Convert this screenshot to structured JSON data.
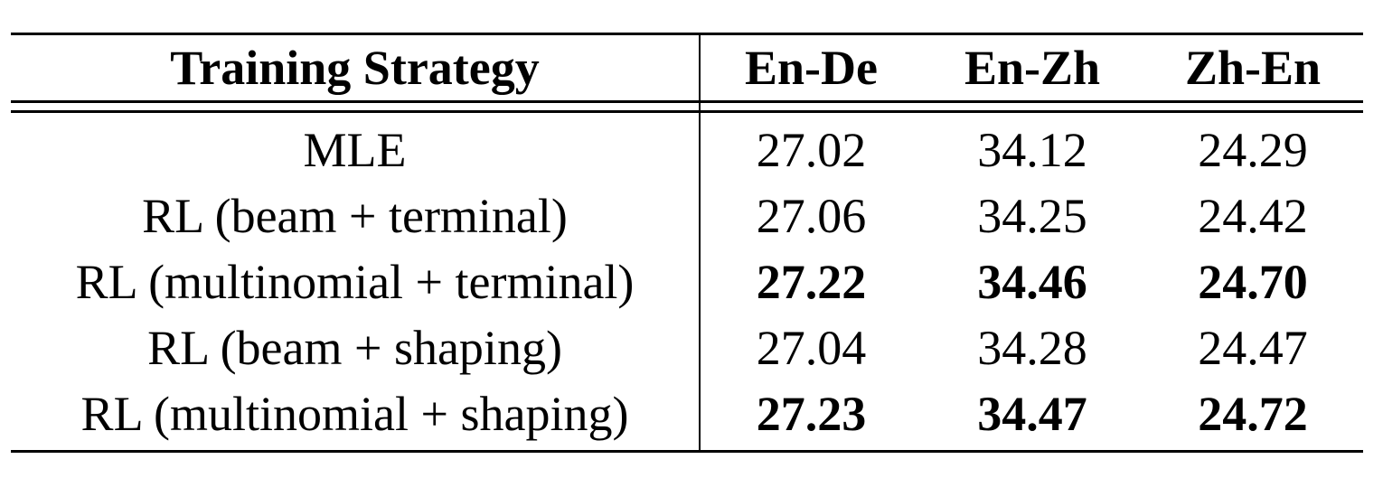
{
  "table": {
    "headers": [
      "Training Strategy",
      "En-De",
      "En-Zh",
      "Zh-En"
    ],
    "rows": [
      {
        "strategy": "MLE",
        "values": [
          "27.02",
          "34.12",
          "24.29"
        ],
        "bold": [
          false,
          false,
          false
        ]
      },
      {
        "strategy": "RL (beam + terminal)",
        "values": [
          "27.06",
          "34.25",
          "24.42"
        ],
        "bold": [
          false,
          false,
          false
        ]
      },
      {
        "strategy": "RL (multinomial + terminal)",
        "values": [
          "27.22",
          "34.46",
          "24.70"
        ],
        "bold": [
          true,
          true,
          true
        ]
      },
      {
        "strategy": "RL (beam + shaping)",
        "values": [
          "27.04",
          "34.28",
          "24.47"
        ],
        "bold": [
          false,
          false,
          false
        ]
      },
      {
        "strategy": "RL (multinomial + shaping)",
        "values": [
          "27.23",
          "34.47",
          "24.72"
        ],
        "bold": [
          true,
          true,
          true
        ]
      }
    ]
  }
}
